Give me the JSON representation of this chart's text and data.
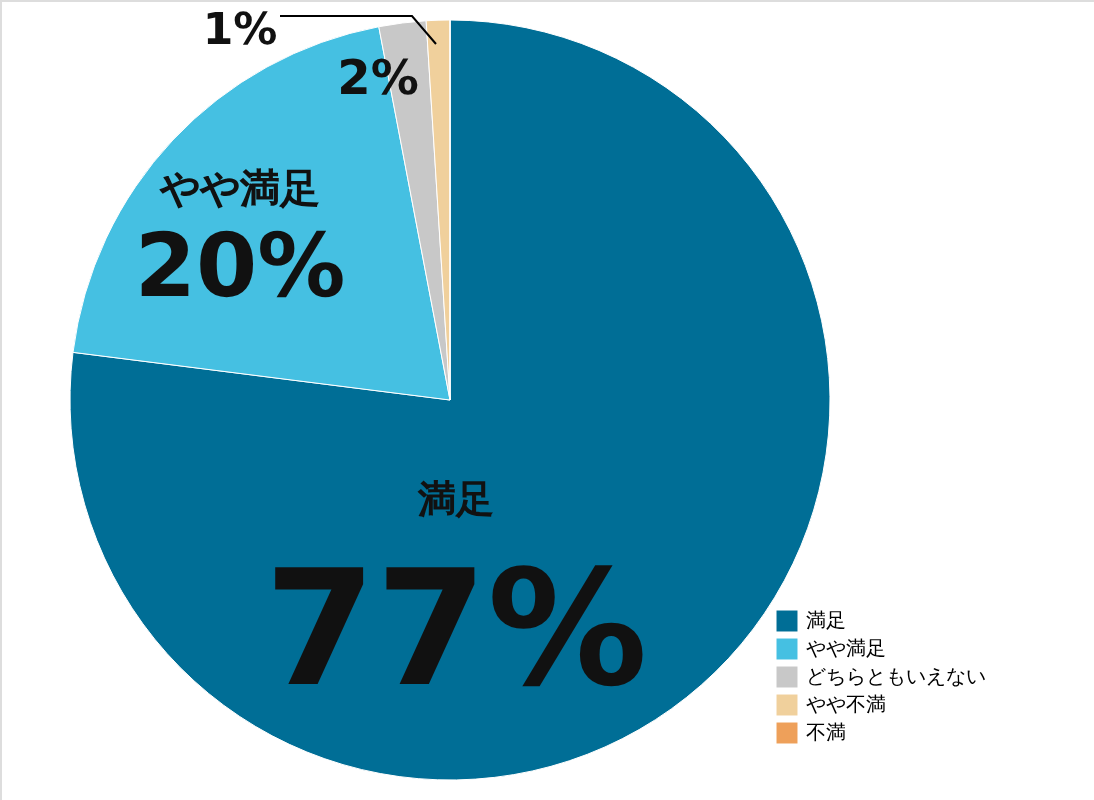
{
  "chart_data": {
    "type": "pie",
    "categories": [
      "満足",
      "やや満足",
      "どちらともいえない",
      "やや不満",
      "不満"
    ],
    "values": [
      77,
      20,
      2,
      1,
      0
    ],
    "colors": [
      "#006e96",
      "#45c0e2",
      "#c8c8c8",
      "#f0d09c",
      "#eea05a"
    ],
    "value_labels": [
      "77%",
      "20%",
      "2%",
      "1%",
      null
    ],
    "annotations": [
      {
        "text": "満足",
        "x": "満足"
      },
      {
        "text": "やや満足",
        "x": "やや満足"
      }
    ],
    "legend": "bottom right"
  }
}
